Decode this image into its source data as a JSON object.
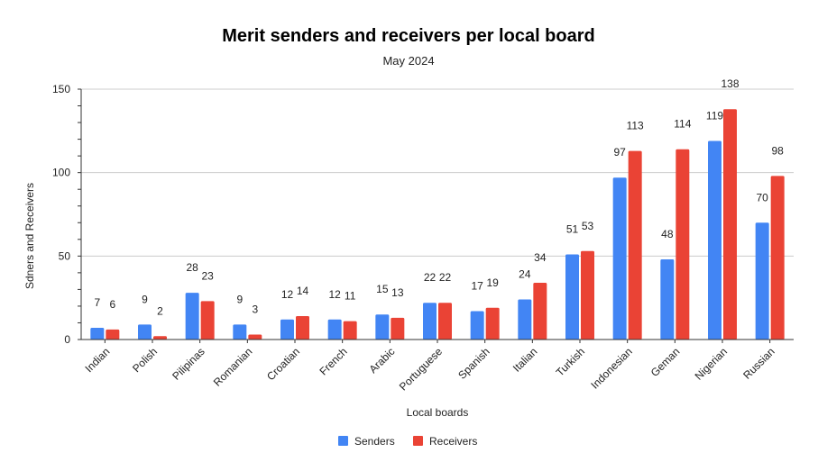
{
  "chart_data": {
    "type": "bar",
    "title": "Merit senders and receivers per local board",
    "subtitle": "May 2024",
    "xlabel": "Local boards",
    "ylabel": "Sdners and Receivers",
    "ylim": [
      0,
      150
    ],
    "yticks": [
      0,
      50,
      100,
      150
    ],
    "grid": true,
    "legend_position": "bottom",
    "categories": [
      "Indian",
      "Polish",
      "Pilipinas",
      "Romanian",
      "Croatian",
      "French",
      "Arabic",
      "Portuguese",
      "Spanish",
      "Italian",
      "Turkish",
      "Indonesian",
      "Geman",
      "Nigerian",
      "Russian"
    ],
    "series": [
      {
        "name": "Senders",
        "color": "#4285f4",
        "values": [
          7,
          9,
          28,
          9,
          12,
          12,
          15,
          22,
          17,
          24,
          51,
          97,
          48,
          119,
          70
        ]
      },
      {
        "name": "Receivers",
        "color": "#ea4335",
        "values": [
          6,
          2,
          23,
          3,
          14,
          11,
          13,
          22,
          19,
          34,
          53,
          113,
          114,
          138,
          98
        ]
      }
    ]
  }
}
